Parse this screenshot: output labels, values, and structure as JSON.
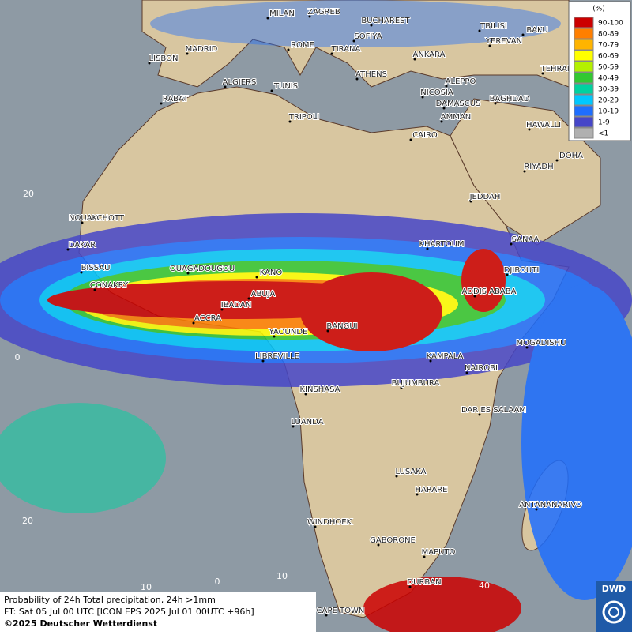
{
  "cities": [
    "MILAN",
    "ZAGREB",
    "BUCHAREST",
    "TBILISI",
    "BAKU",
    "MADRID",
    "ROME",
    "SOFIYA",
    "TIRANA",
    "ANKARA",
    "YEREVAN",
    "LISBON",
    "ATHENS",
    "TEHRAN",
    "ALGIERS",
    "TUNIS",
    "ALEPPO",
    "RABAT",
    "NICOSIA",
    "BAGHDAD",
    "DAMASCUS",
    "TRIPOLI",
    "AMMAN",
    "HAWALLI",
    "CAIRO",
    "DOHA",
    "RIYADH",
    "JEDDAH",
    "NOUAKCHOTT",
    "KHARTOUM",
    "SANAA",
    "DAKAR",
    "BISSAU",
    "OUAGADOUGOU",
    "KANO",
    "DJIBOUTI",
    "CONAKRY",
    "ABUJA",
    "ADDIS ABABA",
    "IBADAN",
    "ACCRA",
    "BANGUI",
    "YAOUNDE",
    "MOGADISHU",
    "LIBREVILLE",
    "KAMPALA",
    "NAIROBI",
    "BUJUMBURA",
    "KINSHASA",
    "DAR ES SALAAM",
    "LUANDA",
    "LUSAKA",
    "HARARE",
    "ANTANANARIVO",
    "WINDHOEK",
    "GABORONE",
    "MAPUTO",
    "DURBAN",
    "CAPE TOWN"
  ],
  "grid_labels": [
    "20",
    "0",
    "20",
    "10",
    "0",
    "10",
    "40"
  ],
  "legend": {
    "title": "(%)",
    "items": [
      {
        "label": "90-100",
        "color": "#cc0000"
      },
      {
        "label": "80-89",
        "color": "#ff7f00"
      },
      {
        "label": "70-79",
        "color": "#ffb400"
      },
      {
        "label": "60-69",
        "color": "#ffff00"
      },
      {
        "label": "50-59",
        "color": "#b4f000"
      },
      {
        "label": "40-49",
        "color": "#32c832"
      },
      {
        "label": "30-39",
        "color": "#00d2a0"
      },
      {
        "label": "20-29",
        "color": "#00c8ff"
      },
      {
        "label": "10-19",
        "color": "#1e6eff"
      },
      {
        "label": "1-9",
        "color": "#4646c8"
      },
      {
        "label": "<1",
        "color": "#b0b0b0"
      }
    ]
  },
  "footer": {
    "line1": "Probability of 24h Total precipitation, 24h >1mm",
    "line2": "FT: Sat 05 Jul 00 UTC [ICON EPS 2025 Jul 01 00UTC +96h]",
    "line3": "©2025 Deutscher Wetterdienst"
  },
  "logo": "DWD"
}
